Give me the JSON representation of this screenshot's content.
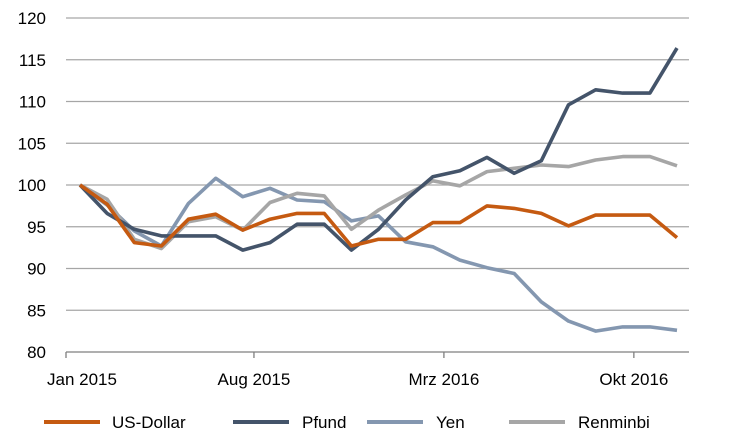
{
  "chart_data": {
    "type": "line",
    "title": "",
    "xlabel": "",
    "ylabel": "",
    "ylim": [
      80,
      120
    ],
    "yticks": [
      80,
      85,
      90,
      95,
      100,
      105,
      110,
      115,
      120
    ],
    "grid": "horizontal",
    "legend_position": "bottom",
    "x": [
      "2015-01",
      "2015-02",
      "2015-03",
      "2015-04",
      "2015-05",
      "2015-06",
      "2015-07",
      "2015-08",
      "2015-09",
      "2015-10",
      "2015-11",
      "2015-12",
      "2016-01",
      "2016-02",
      "2016-03",
      "2016-04",
      "2016-05",
      "2016-06",
      "2016-07",
      "2016-08",
      "2016-09",
      "2016-10",
      "2016-11"
    ],
    "xtick_labels": [
      {
        "x": "2015-01",
        "label": "Jan 2015"
      },
      {
        "x": "2015-08",
        "label": "Aug 2015"
      },
      {
        "x": "2016-03",
        "label": "Mrz 2016"
      },
      {
        "x": "2016-10",
        "label": "Okt 2016"
      }
    ],
    "series": [
      {
        "name": "US-Dollar",
        "color": "#c55a11",
        "values": [
          100,
          97.7,
          93.1,
          92.7,
          95.9,
          96.5,
          94.6,
          95.9,
          96.6,
          96.6,
          92.7,
          93.5,
          93.5,
          95.5,
          95.5,
          97.5,
          97.2,
          96.6,
          95.1,
          96.4,
          96.4,
          96.4,
          93.7
        ]
      },
      {
        "name": "Pfund",
        "color": "#44546a",
        "values": [
          100,
          96.6,
          94.7,
          93.9,
          93.9,
          93.9,
          92.2,
          93.1,
          95.3,
          95.3,
          92.2,
          94.7,
          98.2,
          101.0,
          101.7,
          103.3,
          101.4,
          102.9,
          109.6,
          111.4,
          111.0,
          111.0,
          116.4
        ]
      },
      {
        "name": "Yen",
        "color": "#8497b0",
        "values": [
          100,
          97.6,
          94.5,
          92.7,
          97.8,
          100.8,
          98.6,
          99.6,
          98.2,
          98.0,
          95.7,
          96.3,
          93.2,
          92.6,
          91.0,
          90.1,
          89.4,
          86.0,
          83.7,
          82.5,
          83.0,
          83.0,
          82.6
        ]
      },
      {
        "name": "Renminbi",
        "color": "#a6a6a6",
        "values": [
          100,
          98.3,
          93.5,
          92.4,
          95.6,
          96.2,
          94.6,
          97.9,
          99.0,
          98.7,
          94.7,
          97.0,
          98.8,
          100.5,
          99.9,
          101.6,
          102.0,
          102.4,
          102.2,
          103.0,
          103.4,
          103.4,
          102.3
        ]
      }
    ]
  }
}
